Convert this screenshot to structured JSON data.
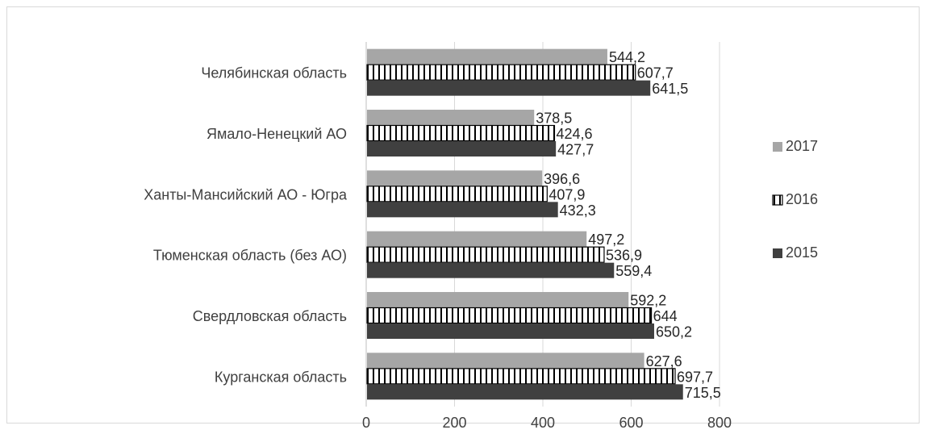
{
  "chart_data": {
    "type": "bar",
    "orientation": "horizontal",
    "categories": [
      "Челябинская область",
      "Ямало-Ненецкий АО",
      "Ханты-Мансийский АО - Югра",
      "Тюменская область (без АО)",
      "Свердловская область",
      "Курганская область"
    ],
    "series": [
      {
        "name": "2017",
        "values": [
          544.2,
          378.5,
          396.6,
          497.2,
          592.2,
          627.6
        ],
        "labels": [
          "544,2",
          "378,5",
          "396,6",
          "497,2",
          "592,2",
          "627,6"
        ],
        "color": "#a6a6a6",
        "pattern": "solid"
      },
      {
        "name": "2016",
        "values": [
          607.7,
          424.6,
          407.9,
          536.9,
          644,
          697.7
        ],
        "labels": [
          "607,7",
          "424,6",
          "407,9",
          "536,9",
          "644",
          "697,7"
        ],
        "color": "#000000",
        "pattern": "vertical-stripes"
      },
      {
        "name": "2015",
        "values": [
          641.5,
          427.7,
          432.3,
          559.4,
          650.2,
          715.5
        ],
        "labels": [
          "641,5",
          "427,7",
          "432,3",
          "559,4",
          "650,2",
          "715,5"
        ],
        "color": "#404040",
        "pattern": "solid"
      }
    ],
    "x_ticks": [
      "0",
      "200",
      "400",
      "600",
      "800"
    ],
    "xlim": [
      0,
      800
    ],
    "grid": true,
    "legend_position": "right",
    "title": "",
    "xlabel": "",
    "ylabel": ""
  }
}
